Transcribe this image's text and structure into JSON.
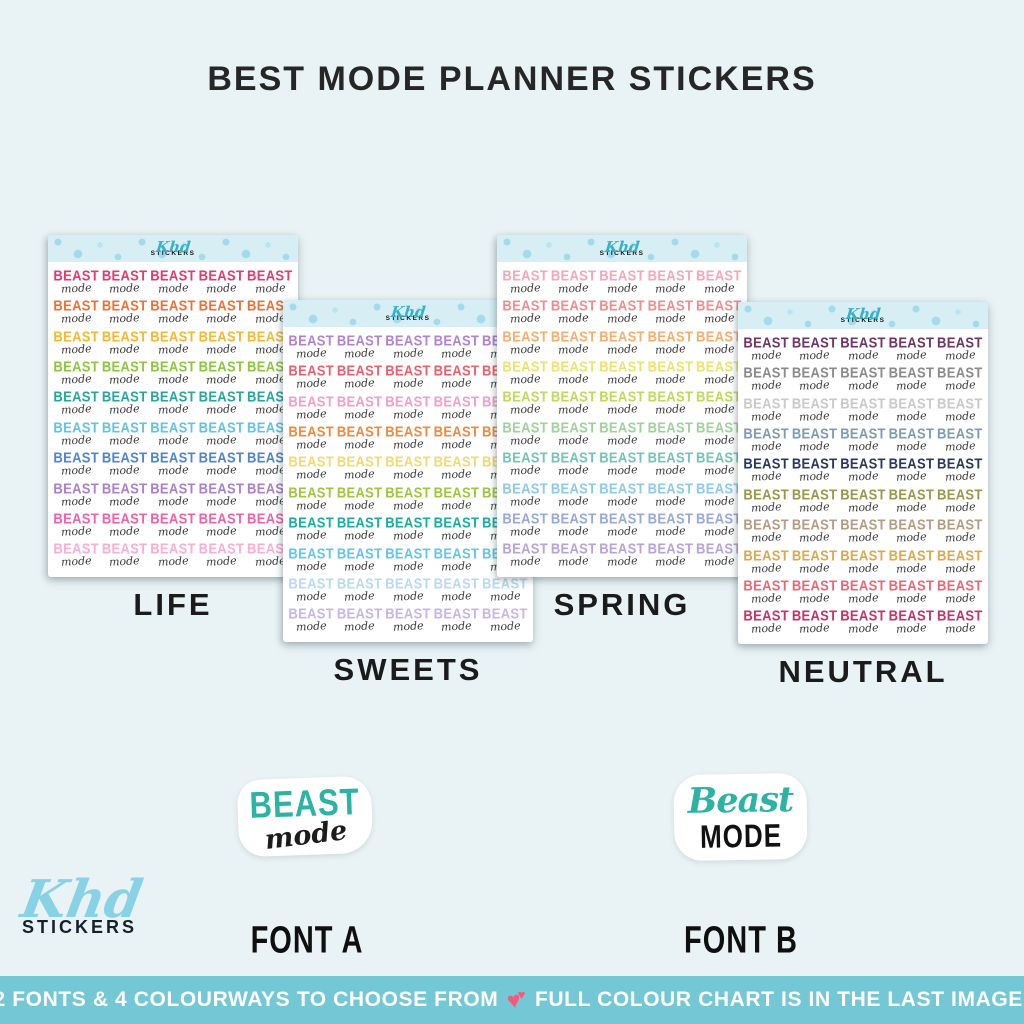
{
  "page": {
    "title": "BEST MODE PLANNER STICKERS",
    "background": "#e9f2f4"
  },
  "sheet_brand": {
    "script": "Khd",
    "caps": "STICKERS"
  },
  "sticker": {
    "top": "BEAST",
    "bottom": "mode",
    "bottom_color": "#3c3c3c"
  },
  "sheets": [
    {
      "label": "LIFE",
      "colors": [
        "#e23a6c",
        "#ee7134",
        "#f6b733",
        "#8cc63f",
        "#27a79c",
        "#62c3e2",
        "#4e86cc",
        "#aa80c6",
        "#f161a6",
        "#f9aed3"
      ]
    },
    {
      "label": "SWEETS",
      "colors": [
        "#b183cd",
        "#ee5f6d",
        "#f49dca",
        "#ef8a3c",
        "#f3d96e",
        "#9fc63d",
        "#17af9b",
        "#63c5e8",
        "#b9d9f3",
        "#c9b5e4"
      ]
    },
    {
      "label": "SPRING",
      "colors": [
        "#f6a6b7",
        "#f28c8c",
        "#f6ae6e",
        "#e9e371",
        "#c0d95b",
        "#9fd29a",
        "#72c5b6",
        "#8fc9ea",
        "#97a9db",
        "#b7a3d9"
      ]
    },
    {
      "label": "NEUTRAL",
      "colors": [
        "#6d3562",
        "#8a8a8a",
        "#c9c9c9",
        "#7b9cb5",
        "#24395e",
        "#99974b",
        "#b49c83",
        "#d9a94e",
        "#ea6876",
        "#c5326b"
      ]
    }
  ],
  "font_samples": [
    {
      "label": "FONT A",
      "top": "BEAST",
      "bottom": "mode",
      "accent": "#2cb3a3"
    },
    {
      "label": "FONT B",
      "top": "Beast",
      "bottom": "MODE",
      "accent": "#2cb3a3"
    }
  ],
  "footer_logo": {
    "script": "Khd",
    "caps": "STICKERS",
    "script_color": "#87d2e5"
  },
  "banner": {
    "text_left": "2 FONTS & 4 COLOURWAYS TO CHOOSE FROM",
    "heart_glyph": "♥",
    "text_right": "FULL COLOUR CHART IS IN THE LAST IMAGE!",
    "background": "#74c8d5",
    "heart_color": "#f4597b"
  }
}
